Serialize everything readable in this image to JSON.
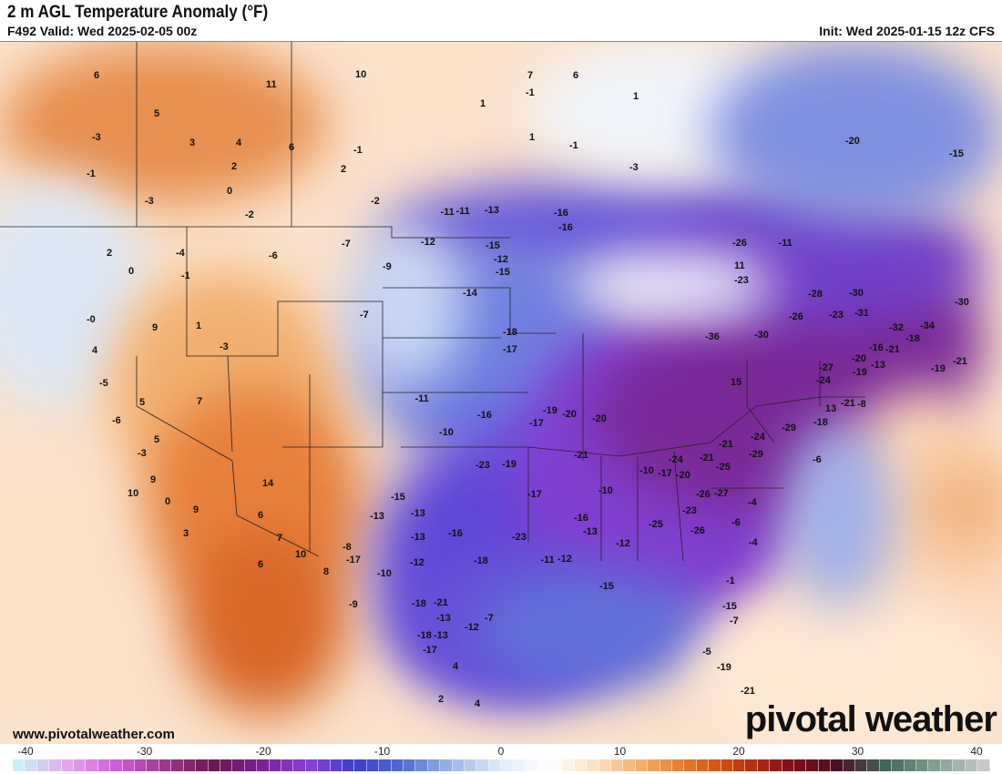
{
  "header": {
    "title": "2 m AGL Temperature Anomaly (°F)",
    "valid": "F492 Valid: Wed 2025-02-05 00z",
    "init": "Init: Wed 2025-01-15 12z CFS"
  },
  "footer": {
    "website": "www.pivotalweather.com",
    "logo": "pivotal weather"
  },
  "colorbar": {
    "ticks": [
      "-40",
      "-30",
      "-20",
      "-10",
      "0",
      "10",
      "20",
      "30",
      "40"
    ],
    "min": -40,
    "max": 40,
    "stops": [
      "#c8f0f8",
      "#e2a8ee",
      "#d060d8",
      "#a03890",
      "#6a1850",
      "#7a2090",
      "#8a40d8",
      "#3a40c8",
      "#5070d0",
      "#a0b8e8",
      "#e0ecf8",
      "#ffffff",
      "#fde0c0",
      "#f4a860",
      "#e07020",
      "#c03810",
      "#801018",
      "#4a1020",
      "#406858",
      "#80a090",
      "#c8c8c8"
    ]
  },
  "station_values": [
    "6",
    "10",
    "11",
    "5",
    "3",
    "4",
    "6",
    "2",
    "-3",
    "-1",
    "2",
    "-1",
    "-3",
    "0",
    "-2",
    "-2",
    "1",
    "-1",
    "-11",
    "-13",
    "-16",
    "1",
    "-1",
    "-3",
    "1",
    "7",
    "6",
    "-7",
    "-11",
    "-12",
    "-12",
    "-16",
    "-15",
    "-15",
    "-14",
    "-9",
    "-7",
    "-6",
    "-4",
    "2",
    "0",
    "-1",
    "9",
    "1",
    "-3",
    "-0",
    "4",
    "-5",
    "-6",
    "5",
    "7",
    "5",
    "-3",
    "9",
    "10",
    "0",
    "9",
    "14",
    "6",
    "3",
    "7",
    "6",
    "-8",
    "8",
    "10",
    "-9",
    "-13",
    "-15",
    "-13",
    "-10",
    "-13",
    "-16",
    "-18",
    "-21",
    "-18",
    "-13",
    "-17",
    "-12",
    "-7",
    "-10",
    "-11",
    "-16",
    "-18",
    "-17",
    "-17",
    "-19",
    "-20",
    "-20",
    "-21",
    "-23",
    "-23",
    "-19",
    "-17",
    "-16",
    "-13",
    "-12",
    "-11",
    "-10",
    "-12",
    "-10",
    "-15",
    "-17",
    "-20",
    "-25",
    "-24",
    "-23",
    "-21",
    "-25",
    "-26",
    "-26",
    "-21",
    "-27",
    "-24",
    "-29",
    "-29",
    "-27",
    "-36",
    "-30",
    "-26",
    "-28",
    "-30",
    "-31",
    "-32",
    "-34",
    "-30",
    "-23",
    "-21",
    "-20",
    "-19",
    "-21",
    "-24",
    "-19",
    "-16",
    "-13",
    "-6",
    "-4",
    "-6",
    "-4",
    "-1",
    "-7",
    "-5",
    "-19",
    "-21",
    "-15",
    "-20",
    "-23",
    "-26",
    "-11",
    "15",
    "13",
    "-8",
    "-18",
    "-15",
    "-21",
    "-18",
    "-17",
    "-18",
    "-12",
    "-13",
    "4",
    "2",
    "4",
    "11"
  ]
}
